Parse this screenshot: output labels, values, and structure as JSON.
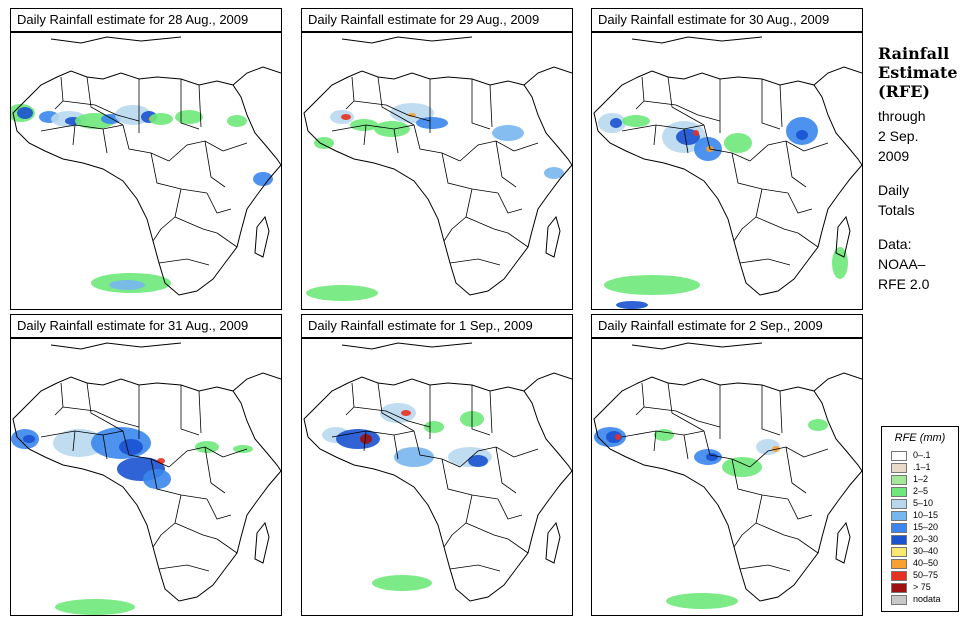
{
  "panels": [
    {
      "title": "Daily Rainfall estimate for  28 Aug., 2009"
    },
    {
      "title": "Daily Rainfall estimate for  29 Aug., 2009"
    },
    {
      "title": "Daily Rainfall estimate for  30 Aug., 2009"
    },
    {
      "title": "Daily Rainfall estimate for  31 Aug., 2009"
    },
    {
      "title": "Daily Rainfall estimate for  1 Sep., 2009"
    },
    {
      "title": "Daily Rainfall estimate for  2 Sep., 2009"
    }
  ],
  "side": {
    "title_line1": "Rainfall",
    "title_line2": "Estimate",
    "title_line3": "(RFE)",
    "through": "through",
    "date_line1": "2 Sep.",
    "date_line2": "2009",
    "daily_line1": "Daily",
    "daily_line2": "Totals",
    "data_label": "Data:",
    "source_line1": "NOAA–",
    "source_line2": "RFE 2.0"
  },
  "legend": {
    "title": "RFE (mm)",
    "items": [
      {
        "label": "0–.1",
        "color": "#ffffff"
      },
      {
        "label": ".1–1",
        "color": "#e8dcc8"
      },
      {
        "label": "1–2",
        "color": "#a6e89a"
      },
      {
        "label": "2–5",
        "color": "#6ee87a"
      },
      {
        "label": "5–10",
        "color": "#b8d8f0"
      },
      {
        "label": "10–15",
        "color": "#78b6f0"
      },
      {
        "label": "15–20",
        "color": "#3a86ec"
      },
      {
        "label": "20–30",
        "color": "#1a52d0"
      },
      {
        "label": "30–40",
        "color": "#f8e870"
      },
      {
        "label": "40–50",
        "color": "#f8a030"
      },
      {
        "label": "50–75",
        "color": "#e83020"
      },
      {
        "label": "> 75",
        "color": "#a01010"
      },
      {
        "label": "nodata",
        "color": "#c8c8c8"
      }
    ]
  }
}
